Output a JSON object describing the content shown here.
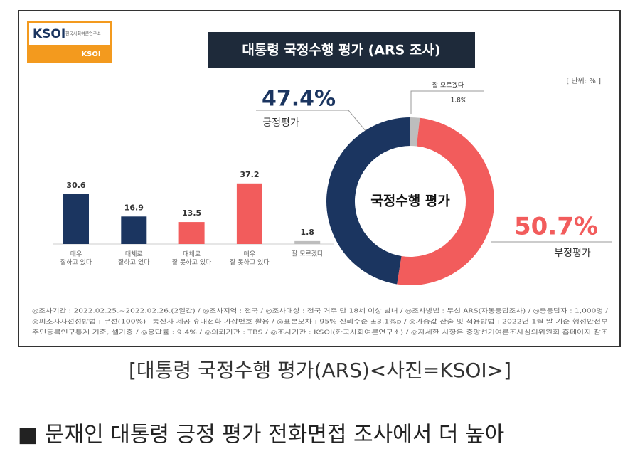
{
  "logo": {
    "name": "KSOI",
    "subtitle": "한국사회여론연구소",
    "tag": "KSOI"
  },
  "unit": "[ 단위: % ]",
  "chart_data": [
    {
      "type": "bar",
      "title": "대통령 국정수행 평가 (ARS 조사)",
      "categories": [
        "매우\n잘하고 있다",
        "대체로\n잘하고 있다",
        "대체로\n잘 못하고 있다",
        "매우\n잘 못하고 있다",
        "잘 모르겠다"
      ],
      "values": [
        30.6,
        16.9,
        13.5,
        37.2,
        1.8
      ],
      "colors": [
        "#1b3560",
        "#1b3560",
        "#f25c5c",
        "#f25c5c",
        "#bdbdbd"
      ]
    },
    {
      "type": "pie",
      "title": "국정수행 평가",
      "categories": [
        "잘 모르겠다",
        "부정평가",
        "긍정평가"
      ],
      "values": [
        1.8,
        50.7,
        47.4
      ],
      "value_labels": [
        "1.8%",
        "50.7%",
        "47.4%"
      ],
      "colors": [
        "#bdbdbd",
        "#f25c5c",
        "#1b3560"
      ]
    }
  ],
  "footnote": [
    "◎조사기간 : 2022.02.25.~2022.02.26.(2일간) / ◎조사지역 : 전국 / ◎조사대상 : 전국 거주 만 18세 이상 남녀 / ◎조사방법 : 무선 ARS(자동응답조사) / ◎총응답자 : 1,000명 /",
    "◎피조사자선정방법 : 무선(100%) –통신사 제공 휴대전화 가상번호 활용 / ◎표본오차 : 95% 신뢰수준 ±3.1%p / ◎가중값 산출 및 적용방법 : 2022년 1월 말 기준 행정안전부",
    "주민등록인구통계 기준, 셀가중 / ◎응답률 : 9.4% / ◎의뢰기관 : TBS / ◎조사기관 : KSOI(한국사회여론연구소) / ◎자세한 사항은 중앙선거여론조사심의위원회 홈페이지 참조"
  ],
  "caption": "[대통령 국정수행 평가(ARS)<사진=KSOI>]",
  "heading": "■ 문재인 대통령 긍정 평가 전화면접 조사에서 더 높아"
}
